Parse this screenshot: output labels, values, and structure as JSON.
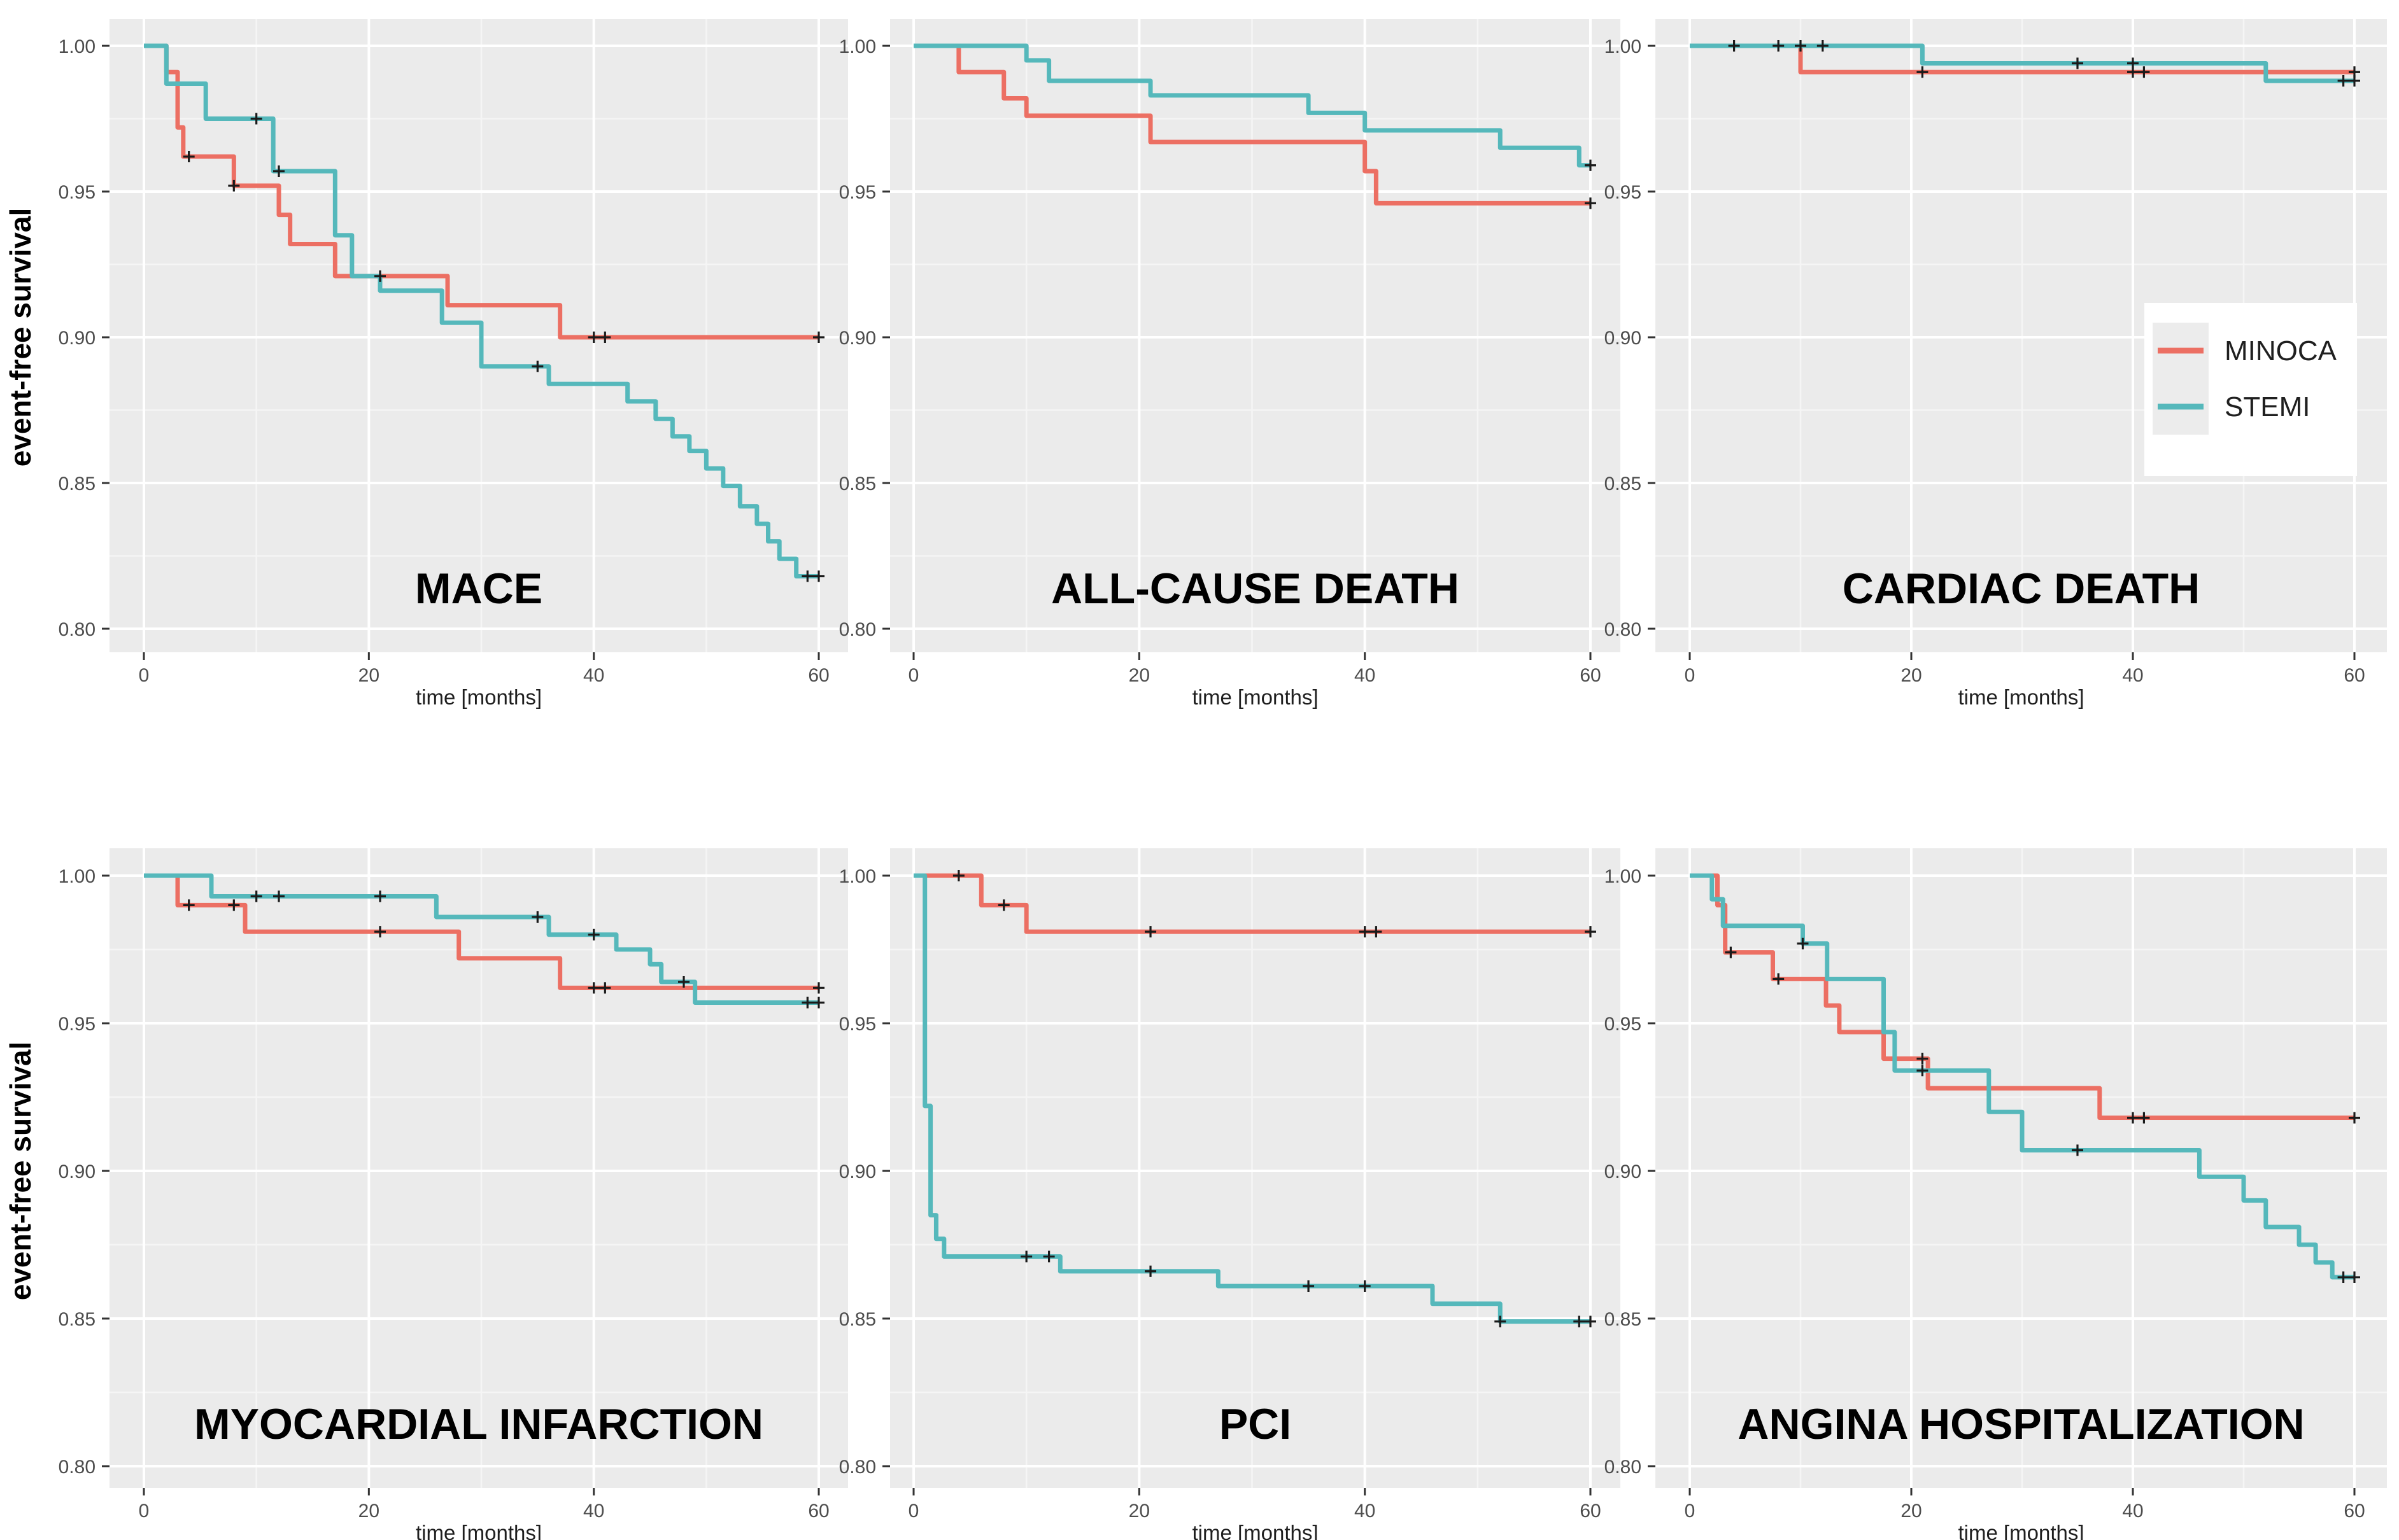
{
  "figure": {
    "ylabel": "event-free survival",
    "xlabel": "time [months]",
    "x_ticks": [
      {
        "label": "0",
        "value": 0
      },
      {
        "label": "20",
        "value": 20
      },
      {
        "label": "40",
        "value": 40
      },
      {
        "label": "60",
        "value": 60
      }
    ],
    "y_ticks": [
      {
        "label": "1.00",
        "value": 1.0
      },
      {
        "label": "0.95",
        "value": 0.95
      },
      {
        "label": "0.90",
        "value": 0.9
      },
      {
        "label": "0.85",
        "value": 0.85
      },
      {
        "label": "0.80",
        "value": 0.8
      }
    ],
    "x_minor_gridlines": [
      10,
      30,
      50
    ],
    "y_minor_gridlines": [
      0.975,
      0.925,
      0.875,
      0.825
    ],
    "x_range": [
      0,
      60
    ],
    "y_range": [
      0.79,
      1.01
    ],
    "grid": "major-and-minor-white-on-gray",
    "panel_background": "#EBEBEB",
    "grid_major_color": "#FFFFFF",
    "grid_minor_color": "#F5F5F5",
    "censor_mark": "+",
    "censor_color": "#1a1a1a",
    "legend": {
      "position": "inside-cardiac-death-panel-right-center",
      "background": "#FFFFFF",
      "key_background": "#ECECEC",
      "entries": [
        {
          "label": "MINOCA",
          "color": "#EC6F63"
        },
        {
          "label": "STEMI",
          "color": "#55B8BB"
        }
      ]
    }
  },
  "chart_data": [
    {
      "type": "line",
      "subtype": "kaplan-meier-step",
      "title": "MACE",
      "xlabel": "time [months]",
      "ylabel": "event-free survival",
      "series": [
        {
          "name": "MINOCA",
          "steps": [
            [
              0,
              1.0
            ],
            [
              2,
              0.991
            ],
            [
              3,
              0.972
            ],
            [
              3.5,
              0.962
            ],
            [
              8,
              0.952
            ],
            [
              12,
              0.942
            ],
            [
              13,
              0.932
            ],
            [
              17,
              0.921
            ],
            [
              27,
              0.911
            ],
            [
              37,
              0.9
            ]
          ],
          "end": [
            60,
            0.9
          ],
          "censors": [
            [
              4,
              0.962
            ],
            [
              8,
              0.952
            ],
            [
              21,
              0.921
            ],
            [
              40,
              0.9
            ],
            [
              41,
              0.9
            ],
            [
              60,
              0.9
            ]
          ]
        },
        {
          "name": "STEMI",
          "steps": [
            [
              0,
              1.0
            ],
            [
              2,
              0.987
            ],
            [
              5.5,
              0.975
            ],
            [
              11.5,
              0.957
            ],
            [
              17,
              0.935
            ],
            [
              18.5,
              0.921
            ],
            [
              21,
              0.916
            ],
            [
              26.5,
              0.905
            ],
            [
              30,
              0.89
            ],
            [
              36,
              0.884
            ],
            [
              43,
              0.878
            ],
            [
              45.5,
              0.872
            ],
            [
              47,
              0.866
            ],
            [
              48.5,
              0.861
            ],
            [
              50,
              0.855
            ],
            [
              51.5,
              0.849
            ],
            [
              53,
              0.842
            ],
            [
              54.5,
              0.836
            ],
            [
              55.5,
              0.83
            ],
            [
              56.5,
              0.824
            ],
            [
              58,
              0.818
            ]
          ],
          "end": [
            60,
            0.818
          ],
          "censors": [
            [
              10,
              0.975
            ],
            [
              12,
              0.957
            ],
            [
              35,
              0.89
            ],
            [
              59,
              0.818
            ],
            [
              60,
              0.818
            ]
          ]
        }
      ]
    },
    {
      "type": "line",
      "subtype": "kaplan-meier-step",
      "title": "ALL-CAUSE DEATH",
      "xlabel": "time [months]",
      "ylabel": "event-free survival",
      "series": [
        {
          "name": "MINOCA",
          "steps": [
            [
              0,
              1.0
            ],
            [
              4,
              0.991
            ],
            [
              8,
              0.982
            ],
            [
              10,
              0.976
            ],
            [
              21,
              0.967
            ],
            [
              40,
              0.957
            ],
            [
              41,
              0.946
            ]
          ],
          "end": [
            60,
            0.946
          ],
          "censors": [
            [
              60,
              0.946
            ]
          ]
        },
        {
          "name": "STEMI",
          "steps": [
            [
              0,
              1.0
            ],
            [
              10,
              0.995
            ],
            [
              12,
              0.988
            ],
            [
              21,
              0.983
            ],
            [
              35,
              0.977
            ],
            [
              40,
              0.971
            ],
            [
              52,
              0.965
            ],
            [
              59,
              0.959
            ]
          ],
          "end": [
            60,
            0.959
          ],
          "censors": [
            [
              60,
              0.959
            ]
          ]
        }
      ]
    },
    {
      "type": "line",
      "subtype": "kaplan-meier-step",
      "title": "CARDIAC DEATH",
      "xlabel": "time [months]",
      "ylabel": "event-free survival",
      "has_legend": true,
      "series": [
        {
          "name": "MINOCA",
          "steps": [
            [
              0,
              1.0
            ],
            [
              10,
              0.991
            ]
          ],
          "end": [
            60,
            0.991
          ],
          "censors": [
            [
              21,
              0.991
            ],
            [
              40,
              0.991
            ],
            [
              41,
              0.991
            ],
            [
              60,
              0.991
            ]
          ]
        },
        {
          "name": "STEMI",
          "steps": [
            [
              0,
              1.0
            ],
            [
              21,
              0.994
            ],
            [
              52,
              0.988
            ]
          ],
          "end": [
            60,
            0.988
          ],
          "censors": [
            [
              4,
              1.0
            ],
            [
              8,
              1.0
            ],
            [
              10,
              1.0
            ],
            [
              12,
              1.0
            ],
            [
              35,
              0.994
            ],
            [
              40,
              0.994
            ],
            [
              59,
              0.988
            ],
            [
              60,
              0.988
            ]
          ]
        }
      ]
    },
    {
      "type": "line",
      "subtype": "kaplan-meier-step",
      "title": "MYOCARDIAL INFARCTION",
      "xlabel": "time [months]",
      "ylabel": "event-free survival",
      "series": [
        {
          "name": "MINOCA",
          "steps": [
            [
              0,
              1.0
            ],
            [
              3,
              0.99
            ],
            [
              9,
              0.981
            ],
            [
              28,
              0.972
            ],
            [
              37,
              0.962
            ]
          ],
          "end": [
            60,
            0.962
          ],
          "censors": [
            [
              4,
              0.99
            ],
            [
              8,
              0.99
            ],
            [
              21,
              0.981
            ],
            [
              40,
              0.962
            ],
            [
              41,
              0.962
            ],
            [
              60,
              0.962
            ]
          ]
        },
        {
          "name": "STEMI",
          "steps": [
            [
              0,
              1.0
            ],
            [
              6,
              0.993
            ],
            [
              26,
              0.986
            ],
            [
              36,
              0.98
            ],
            [
              42,
              0.975
            ],
            [
              45,
              0.97
            ],
            [
              46,
              0.964
            ],
            [
              49,
              0.957
            ]
          ],
          "end": [
            60,
            0.957
          ],
          "censors": [
            [
              10,
              0.993
            ],
            [
              12,
              0.993
            ],
            [
              21,
              0.993
            ],
            [
              35,
              0.986
            ],
            [
              40,
              0.98
            ],
            [
              48,
              0.964
            ],
            [
              59,
              0.957
            ],
            [
              60,
              0.957
            ]
          ]
        }
      ]
    },
    {
      "type": "line",
      "subtype": "kaplan-meier-step",
      "title": "PCI",
      "xlabel": "time [months]",
      "ylabel": "event-free survival",
      "series": [
        {
          "name": "MINOCA",
          "steps": [
            [
              0,
              1.0
            ],
            [
              6,
              0.99
            ],
            [
              10,
              0.981
            ]
          ],
          "end": [
            60,
            0.981
          ],
          "censors": [
            [
              4,
              1.0
            ],
            [
              8,
              0.99
            ],
            [
              21,
              0.981
            ],
            [
              40,
              0.981
            ],
            [
              41,
              0.981
            ],
            [
              60,
              0.981
            ]
          ]
        },
        {
          "name": "STEMI",
          "steps": [
            [
              0,
              1.0
            ],
            [
              1,
              0.922
            ],
            [
              1.5,
              0.885
            ],
            [
              2,
              0.877
            ],
            [
              2.7,
              0.871
            ],
            [
              13,
              0.866
            ],
            [
              27,
              0.861
            ],
            [
              46,
              0.855
            ],
            [
              52,
              0.849
            ]
          ],
          "end": [
            60,
            0.849
          ],
          "censors": [
            [
              10,
              0.871
            ],
            [
              12,
              0.871
            ],
            [
              21,
              0.866
            ],
            [
              35,
              0.861
            ],
            [
              40,
              0.861
            ],
            [
              52,
              0.849
            ],
            [
              59,
              0.849
            ],
            [
              60,
              0.849
            ]
          ]
        }
      ]
    },
    {
      "type": "line",
      "subtype": "kaplan-meier-step",
      "title": "ANGINA HOSPITALIZATION",
      "xlabel": "time [months]",
      "ylabel": "event-free survival",
      "series": [
        {
          "name": "MINOCA",
          "steps": [
            [
              0,
              1.0
            ],
            [
              2.5,
              0.99
            ],
            [
              3.2,
              0.974
            ],
            [
              7.5,
              0.965
            ],
            [
              12.3,
              0.956
            ],
            [
              13.5,
              0.947
            ],
            [
              17.5,
              0.938
            ],
            [
              21.5,
              0.928
            ],
            [
              37,
              0.918
            ]
          ],
          "end": [
            60,
            0.918
          ],
          "censors": [
            [
              3.7,
              0.974
            ],
            [
              8,
              0.965
            ],
            [
              21,
              0.938
            ],
            [
              40,
              0.918
            ],
            [
              41,
              0.918
            ],
            [
              60,
              0.918
            ]
          ]
        },
        {
          "name": "STEMI",
          "steps": [
            [
              0,
              1.0
            ],
            [
              2,
              0.992
            ],
            [
              3,
              0.983
            ],
            [
              10.2,
              0.977
            ],
            [
              12.4,
              0.965
            ],
            [
              17.5,
              0.947
            ],
            [
              18.5,
              0.934
            ],
            [
              27,
              0.92
            ],
            [
              30,
              0.907
            ],
            [
              46,
              0.898
            ],
            [
              50,
              0.89
            ],
            [
              52,
              0.881
            ],
            [
              55,
              0.875
            ],
            [
              56.5,
              0.869
            ],
            [
              58,
              0.864
            ]
          ],
          "end": [
            60,
            0.864
          ],
          "censors": [
            [
              10.2,
              0.977
            ],
            [
              21,
              0.934
            ],
            [
              35,
              0.907
            ],
            [
              59,
              0.864
            ],
            [
              60,
              0.864
            ]
          ]
        }
      ]
    }
  ]
}
